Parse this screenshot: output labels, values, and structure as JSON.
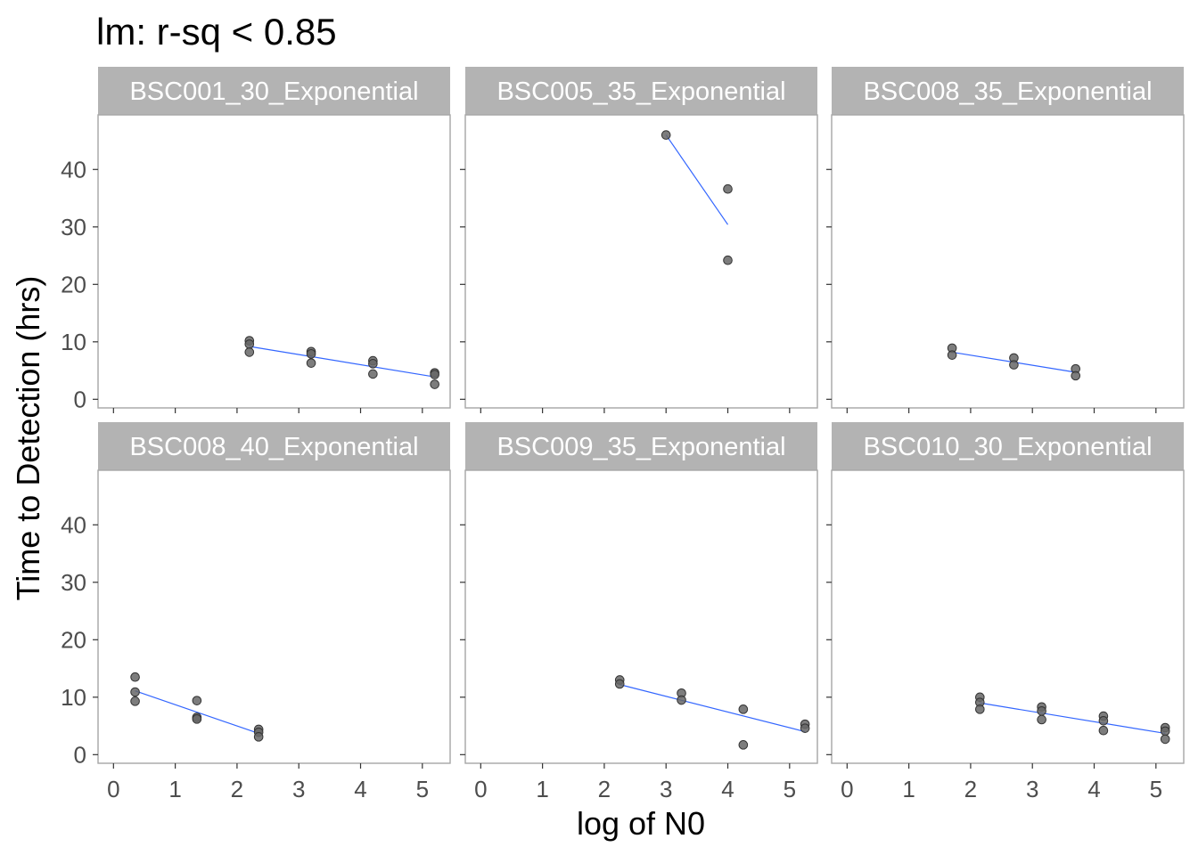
{
  "chart_data": {
    "type": "scatter",
    "title": "lm: r-sq < 0.85",
    "xlabel": "log of N0",
    "ylabel": "Time to Detection (hrs)",
    "xlim": [
      -0.25,
      5.45
    ],
    "ylim": [
      -1.5,
      49.5
    ],
    "x_ticks": [
      "0",
      "1",
      "2",
      "3",
      "4",
      "5"
    ],
    "y_ticks": [
      "0",
      "10",
      "20",
      "30",
      "40"
    ],
    "grid": false,
    "facets": [
      {
        "label": "BSC001_30_Exponential",
        "points": [
          [
            2.2,
            10.2
          ],
          [
            2.2,
            9.6
          ],
          [
            2.2,
            8.2
          ],
          [
            3.2,
            8.3
          ],
          [
            3.2,
            7.9
          ],
          [
            3.2,
            6.3
          ],
          [
            4.2,
            6.7
          ],
          [
            4.2,
            6.2
          ],
          [
            4.2,
            4.4
          ],
          [
            5.2,
            4.6
          ],
          [
            5.2,
            4.3
          ],
          [
            5.2,
            2.6
          ]
        ],
        "fit": [
          [
            2.2,
            9.2
          ],
          [
            5.2,
            3.9
          ]
        ]
      },
      {
        "label": "BSC005_35_Exponential",
        "points": [
          [
            3.0,
            46.0
          ],
          [
            4.0,
            36.6
          ],
          [
            4.0,
            24.2
          ]
        ],
        "fit": [
          [
            3.0,
            46.0
          ],
          [
            4.0,
            30.4
          ]
        ]
      },
      {
        "label": "BSC008_35_Exponential",
        "points": [
          [
            1.7,
            8.9
          ],
          [
            1.7,
            7.7
          ],
          [
            2.7,
            7.2
          ],
          [
            2.7,
            6.0
          ],
          [
            3.7,
            5.3
          ],
          [
            3.7,
            4.1
          ]
        ],
        "fit": [
          [
            1.7,
            8.2
          ],
          [
            3.7,
            4.7
          ]
        ]
      },
      {
        "label": "BSC008_40_Exponential",
        "points": [
          [
            0.35,
            13.5
          ],
          [
            0.35,
            10.9
          ],
          [
            0.35,
            9.3
          ],
          [
            1.35,
            9.4
          ],
          [
            1.35,
            6.5
          ],
          [
            1.35,
            6.2
          ],
          [
            2.35,
            4.4
          ],
          [
            2.35,
            3.9
          ],
          [
            2.35,
            3.1
          ]
        ],
        "fit": [
          [
            0.35,
            11.1
          ],
          [
            2.35,
            3.7
          ]
        ]
      },
      {
        "label": "BSC009_35_Exponential",
        "points": [
          [
            2.25,
            13.0
          ],
          [
            2.25,
            12.3
          ],
          [
            3.25,
            10.7
          ],
          [
            3.25,
            9.5
          ],
          [
            4.25,
            7.9
          ],
          [
            4.25,
            1.7
          ],
          [
            5.25,
            5.3
          ],
          [
            5.25,
            4.6
          ]
        ],
        "fit": [
          [
            2.25,
            12.2
          ],
          [
            5.25,
            4.0
          ]
        ]
      },
      {
        "label": "BSC010_30_Exponential",
        "points": [
          [
            2.15,
            10.0
          ],
          [
            2.15,
            9.1
          ],
          [
            2.15,
            7.9
          ],
          [
            3.15,
            8.3
          ],
          [
            3.15,
            7.6
          ],
          [
            3.15,
            6.1
          ],
          [
            4.15,
            6.7
          ],
          [
            4.15,
            5.9
          ],
          [
            4.15,
            4.2
          ],
          [
            5.15,
            4.7
          ],
          [
            5.15,
            4.1
          ],
          [
            5.15,
            2.7
          ]
        ],
        "fit": [
          [
            2.15,
            9.0
          ],
          [
            5.15,
            3.7
          ]
        ]
      }
    ],
    "colors": {
      "point_fill": "#666666",
      "point_stroke": "#333333",
      "fit_line": "#3366FF",
      "strip_bg": "#b3b3b3",
      "panel_border": "#a6a6a6",
      "tick_text": "#4d4d4d"
    }
  }
}
